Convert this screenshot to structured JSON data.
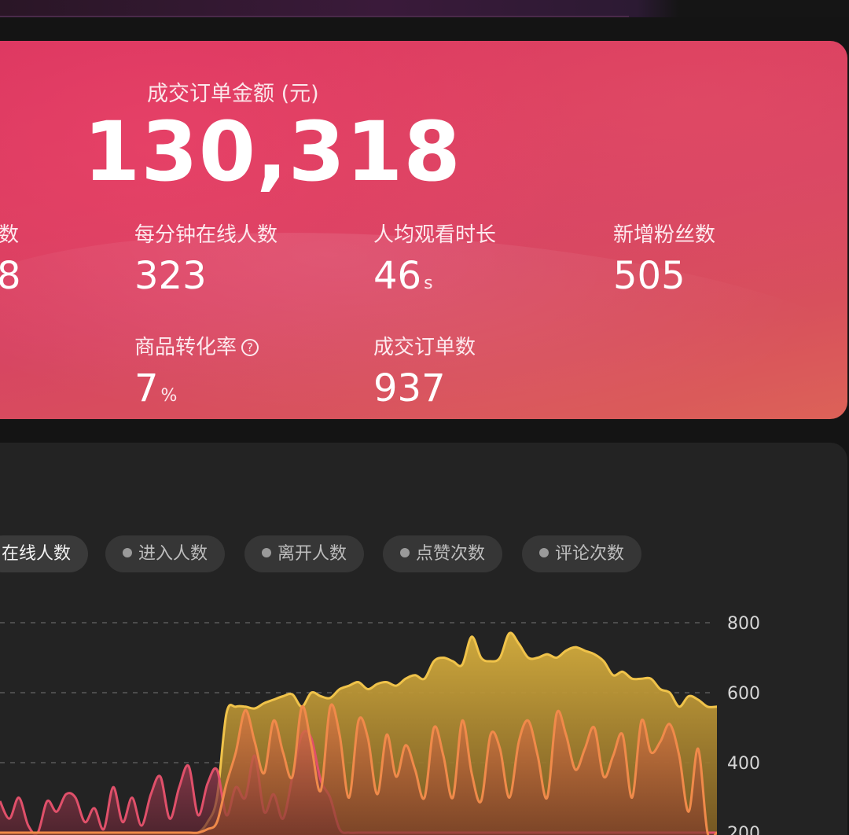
{
  "hero": {
    "label": "成交订单金额 (元)",
    "value": "130,318"
  },
  "metrics_row1": [
    {
      "label": "数",
      "value": "8",
      "unit": ""
    },
    {
      "label": "每分钟在线人数",
      "value": "323",
      "unit": ""
    },
    {
      "label": "人均观看时长",
      "value": "46",
      "unit": "s"
    },
    {
      "label": "新增粉丝数",
      "value": "505",
      "unit": ""
    }
  ],
  "metrics_row2": [
    {
      "label": "商品转化率",
      "value": "7",
      "unit": "%",
      "help_icon": "question-circle-icon"
    },
    {
      "label": "成交订单数",
      "value": "937",
      "unit": ""
    }
  ],
  "tabs": [
    {
      "label": "在线人数",
      "active": true
    },
    {
      "label": "进入人数",
      "active": false
    },
    {
      "label": "离开人数",
      "active": false
    },
    {
      "label": "点赞次数",
      "active": false
    },
    {
      "label": "评论次数",
      "active": false
    }
  ],
  "colors": {
    "hero_start": "#d9345e",
    "hero_end": "#dc6258",
    "series_yellow": "#f0c34a",
    "series_orange": "#f08a4a",
    "series_pink": "#e0506a"
  },
  "chart_data": {
    "type": "area",
    "y_ticks": [
      "800",
      "600",
      "400",
      "200"
    ],
    "ylim": [
      200,
      800
    ],
    "grid": true,
    "series": [
      {
        "values": [
          200,
          200,
          200,
          200,
          200,
          200,
          200,
          200,
          200,
          200,
          200,
          200,
          200,
          200,
          200,
          200,
          200,
          200,
          200,
          200,
          200,
          200,
          230,
          300,
          540,
          560,
          560,
          555,
          570,
          580,
          590,
          595,
          560,
          600,
          590,
          585,
          610,
          620,
          630,
          610,
          625,
          630,
          620,
          640,
          650,
          640,
          690,
          700,
          690,
          680,
          760,
          700,
          690,
          700,
          770,
          740,
          700,
          700,
          710,
          700,
          720,
          730,
          720,
          710,
          690,
          650,
          660,
          640,
          640,
          640,
          610,
          600,
          560,
          590,
          580,
          560,
          560
        ],
        "color": "#f0c34a"
      },
      {
        "values": [
          200,
          200,
          200,
          200,
          200,
          200,
          200,
          200,
          200,
          200,
          200,
          200,
          200,
          200,
          200,
          200,
          200,
          200,
          200,
          200,
          200,
          200,
          210,
          230,
          340,
          430,
          550,
          460,
          370,
          520,
          430,
          360,
          560,
          450,
          320,
          560,
          480,
          300,
          520,
          470,
          310,
          480,
          360,
          450,
          380,
          300,
          500,
          420,
          300,
          520,
          370,
          290,
          480,
          440,
          300,
          460,
          520,
          420,
          300,
          540,
          480,
          380,
          440,
          500,
          360,
          420,
          480,
          300,
          520,
          430,
          460,
          510,
          420,
          260,
          440,
          200,
          200
        ],
        "color": "#f08a4a"
      },
      {
        "values": [
          290,
          240,
          300,
          220,
          200,
          290,
          260,
          310,
          300,
          230,
          270,
          210,
          330,
          230,
          300,
          220,
          310,
          360,
          240,
          330,
          390,
          250,
          340,
          380,
          250,
          330,
          300,
          420,
          260,
          310,
          240,
          360,
          480,
          470,
          350,
          300,
          210,
          200,
          200,
          200,
          200,
          200,
          200,
          200,
          200,
          200,
          200,
          200,
          200,
          200,
          200,
          200,
          200,
          200,
          200,
          200,
          200,
          200,
          200,
          200,
          200,
          200,
          200,
          200,
          200,
          200,
          200,
          200,
          200,
          200,
          200,
          200,
          200,
          200,
          200,
          200,
          200
        ],
        "color": "#e0506a"
      }
    ]
  }
}
